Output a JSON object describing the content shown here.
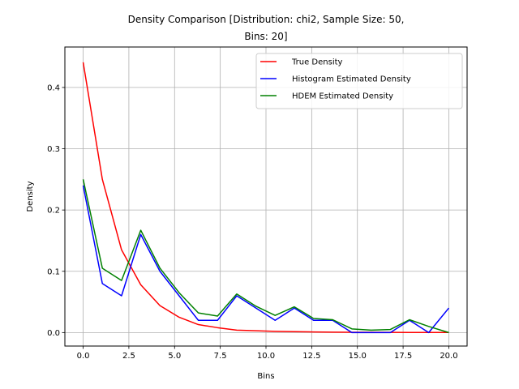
{
  "chart_data": {
    "type": "line",
    "title_line1": "Density Comparison [Distribution: chi2, Sample Size: 50,",
    "title_line2": "Bins: 20]",
    "xlabel": "Bins",
    "ylabel": "Density",
    "xlim": [
      -1.0,
      21.0
    ],
    "ylim": [
      -0.022,
      0.466
    ],
    "xticks": [
      0.0,
      2.5,
      5.0,
      7.5,
      10.0,
      12.5,
      15.0,
      17.5,
      20.0
    ],
    "xtick_labels": [
      "0.0",
      "2.5",
      "5.0",
      "7.5",
      "10.0",
      "12.5",
      "15.0",
      "17.5",
      "20.0"
    ],
    "yticks": [
      0.0,
      0.1,
      0.2,
      0.3,
      0.4
    ],
    "ytick_labels": [
      "0.0",
      "0.1",
      "0.2",
      "0.3",
      "0.4"
    ],
    "grid": true,
    "legend_position": "top-right",
    "series": [
      {
        "name": "True Density",
        "color": "#ff0000",
        "x": [
          0.0,
          1.05,
          2.1,
          3.15,
          4.2,
          5.25,
          6.3,
          7.35,
          8.4,
          9.45,
          10.5,
          11.55,
          12.6,
          13.65,
          14.7,
          15.75,
          16.8,
          17.85,
          18.9,
          20.0
        ],
        "y": [
          0.441,
          0.25,
          0.135,
          0.078,
          0.044,
          0.025,
          0.013,
          0.008,
          0.004,
          0.003,
          0.002,
          0.0015,
          0.001,
          0.0007,
          0.0005,
          0.0004,
          0.0003,
          0.0002,
          0.0001,
          0.0001
        ]
      },
      {
        "name": "Histogram Estimated Density",
        "color": "#0000ff",
        "x": [
          0.0,
          1.05,
          2.1,
          3.15,
          4.2,
          5.25,
          6.3,
          7.35,
          8.4,
          9.45,
          10.5,
          11.55,
          12.6,
          13.65,
          14.7,
          15.75,
          16.8,
          17.85,
          18.9,
          20.0
        ],
        "y": [
          0.24,
          0.08,
          0.06,
          0.16,
          0.1,
          0.06,
          0.02,
          0.02,
          0.06,
          0.04,
          0.02,
          0.04,
          0.02,
          0.02,
          0.0,
          0.0,
          0.0,
          0.02,
          0.0,
          0.04
        ]
      },
      {
        "name": "HDEM Estimated Density",
        "color": "#008000",
        "x": [
          0.0,
          1.05,
          2.1,
          3.15,
          4.2,
          5.25,
          6.3,
          7.35,
          8.4,
          9.45,
          10.5,
          11.55,
          12.6,
          13.65,
          14.7,
          15.75,
          16.8,
          17.85,
          18.9,
          20.0
        ],
        "y": [
          0.25,
          0.105,
          0.085,
          0.167,
          0.105,
          0.065,
          0.032,
          0.027,
          0.063,
          0.043,
          0.028,
          0.042,
          0.023,
          0.021,
          0.006,
          0.004,
          0.005,
          0.021,
          0.01,
          0.0
        ]
      }
    ]
  }
}
